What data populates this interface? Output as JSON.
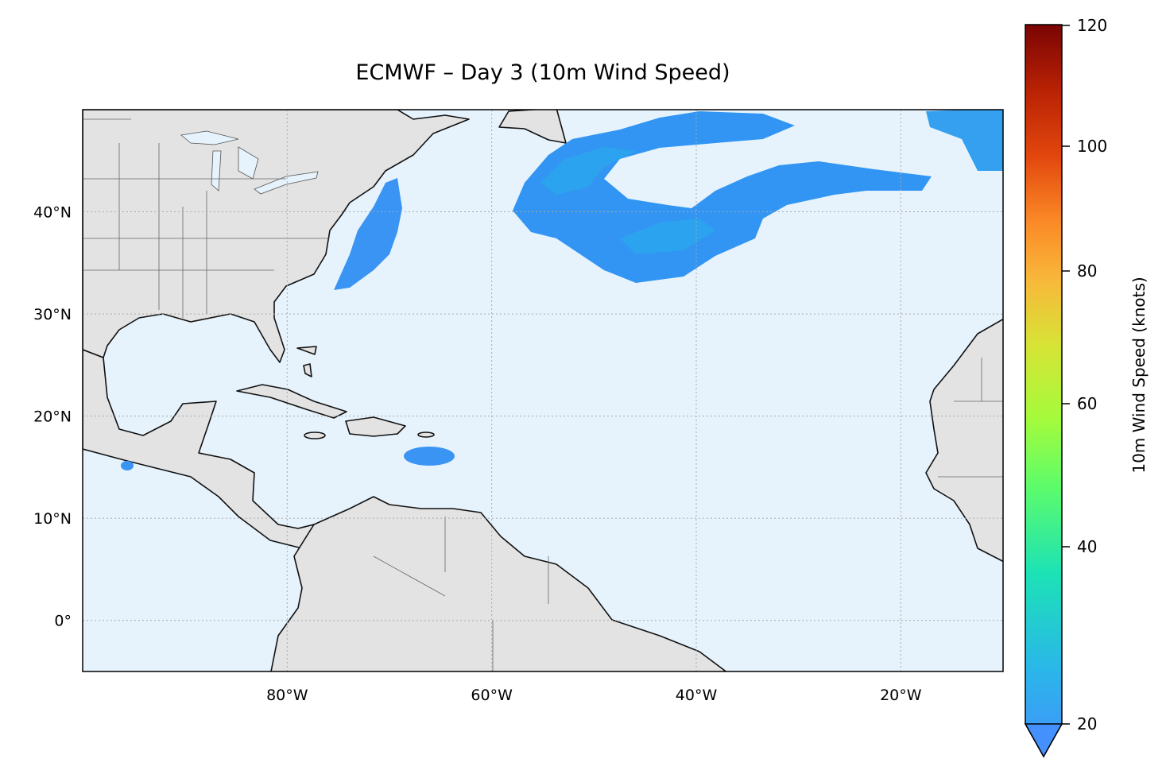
{
  "chart_data": {
    "type": "map",
    "title": "ECMWF – Day 3 (10m Wind Speed)",
    "projection": "PlateCarree",
    "lon_range": [
      -100,
      -10
    ],
    "lat_range": [
      -5,
      50
    ],
    "grid": true,
    "x_ticks": [
      {
        "value": -80,
        "label": "80°W"
      },
      {
        "value": -60,
        "label": "60°W"
      },
      {
        "value": -40,
        "label": "40°W"
      },
      {
        "value": -20,
        "label": "20°W"
      }
    ],
    "y_ticks": [
      {
        "value": 40,
        "label": "40°N"
      },
      {
        "value": 30,
        "label": "30°N"
      },
      {
        "value": 20,
        "label": "20°N"
      },
      {
        "value": 10,
        "label": "10°N"
      },
      {
        "value": 0,
        "label": "0°"
      }
    ],
    "colorbar": {
      "label": "10m Wind Speed (knots)",
      "range": [
        20,
        120
      ],
      "extend": "min",
      "ticks": [
        "20",
        "40",
        "60",
        "80",
        "100",
        "120"
      ],
      "colormap": "turbo"
    },
    "wind_features": [
      "Band of 20-30 kt winds off the US Northeast coast (~35-42°N, 70-75°W)",
      "Large region of 20-30 kt winds in the central North Atlantic (~33-50°N, 25-60°W)",
      "20-30 kt winds at the top-right corner (~44-50°N, 10-18°W)",
      "Small patches of 20-25 kt winds in the eastern Caribbean (~15-18°N, 60-68°W)"
    ],
    "colors": {
      "ocean": "#e6f3fc",
      "land": "#e3e3e3",
      "wind_low": "#3e8ff7",
      "wind_mid": "#2bb1ee"
    }
  }
}
